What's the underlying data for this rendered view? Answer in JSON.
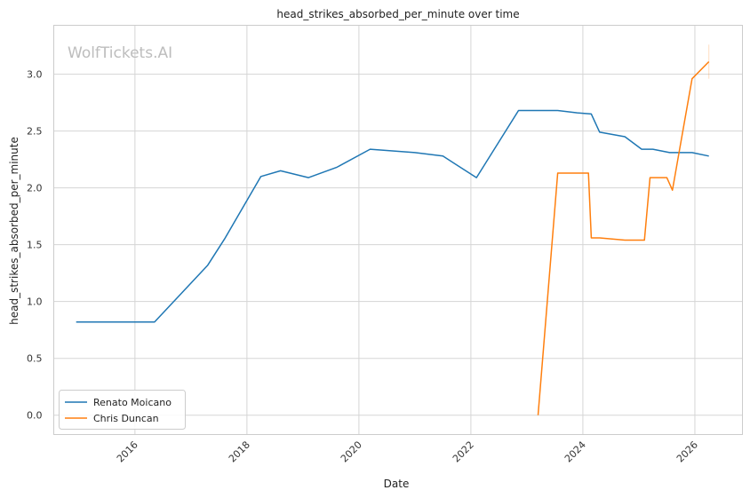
{
  "chart_data": {
    "type": "line",
    "title": "head_strikes_absorbed_per_minute over time",
    "xlabel": "Date",
    "ylabel": "head_strikes_absorbed_per_minute",
    "watermark": "WolfTickets.AI",
    "xlim": [
      2014.55,
      2026.85
    ],
    "ylim": [
      -0.17,
      3.43
    ],
    "xticks": [
      2016,
      2018,
      2020,
      2022,
      2024,
      2026
    ],
    "yticks": [
      0.0,
      0.5,
      1.0,
      1.5,
      2.0,
      2.5,
      3.0
    ],
    "ytick_labels": [
      "0.0",
      "0.5",
      "1.0",
      "1.5",
      "2.0",
      "2.5",
      "3.0"
    ],
    "grid": true,
    "legend_position": "lower-left",
    "series": [
      {
        "name": "Renato Moicano",
        "color": "#1f77b4",
        "points": [
          [
            2014.95,
            0.82
          ],
          [
            2016.35,
            0.82
          ],
          [
            2017.3,
            1.32
          ],
          [
            2017.6,
            1.55
          ],
          [
            2018.25,
            2.1
          ],
          [
            2018.6,
            2.15
          ],
          [
            2019.1,
            2.09
          ],
          [
            2019.6,
            2.18
          ],
          [
            2020.2,
            2.34
          ],
          [
            2021.0,
            2.31
          ],
          [
            2021.5,
            2.28
          ],
          [
            2022.1,
            2.09
          ],
          [
            2022.85,
            2.68
          ],
          [
            2023.55,
            2.68
          ],
          [
            2023.9,
            2.66
          ],
          [
            2024.15,
            2.65
          ],
          [
            2024.3,
            2.49
          ],
          [
            2024.75,
            2.45
          ],
          [
            2025.05,
            2.34
          ],
          [
            2025.25,
            2.34
          ],
          [
            2025.55,
            2.31
          ],
          [
            2025.95,
            2.31
          ],
          [
            2026.25,
            2.28
          ]
        ]
      },
      {
        "name": "Chris Duncan",
        "color": "#ff7f0e",
        "points": [
          [
            2023.2,
            0.0
          ],
          [
            2023.55,
            2.13
          ],
          [
            2024.1,
            2.13
          ],
          [
            2024.15,
            1.56
          ],
          [
            2024.3,
            1.56
          ],
          [
            2024.75,
            1.54
          ],
          [
            2025.1,
            1.54
          ],
          [
            2025.2,
            2.09
          ],
          [
            2025.5,
            2.09
          ],
          [
            2025.6,
            1.98
          ],
          [
            2025.95,
            2.96
          ],
          [
            2026.25,
            3.11
          ]
        ],
        "error_bar": {
          "x": 2026.25,
          "y_low": 2.96,
          "y_high": 3.26
        }
      }
    ]
  }
}
